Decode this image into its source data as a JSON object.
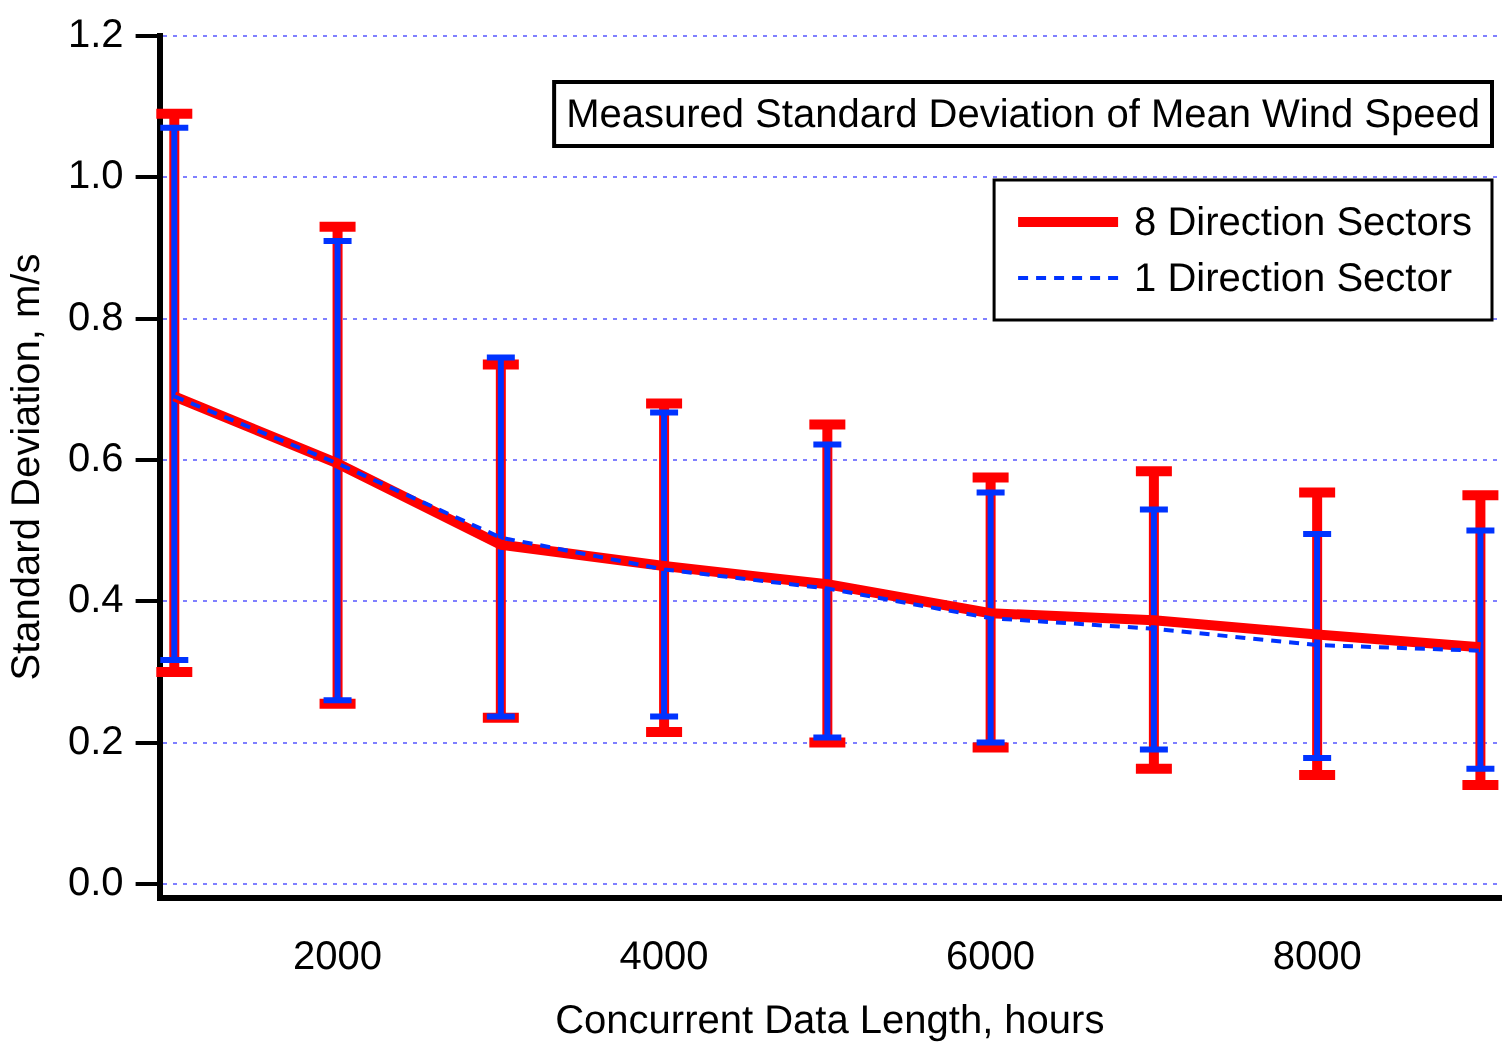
{
  "chart_data": {
    "type": "line",
    "title": "Measured Standard Deviation of Mean Wind Speed",
    "xlabel": "Concurrent Data Length, hours",
    "ylabel": "Standard Deviation, m/s",
    "x": [
      1000,
      2000,
      3000,
      4000,
      5000,
      6000,
      7000,
      8000,
      9000
    ],
    "series": [
      {
        "name": "8 Direction Sectors",
        "color": "#ff0000",
        "line_style": "solid",
        "values": [
          0.69,
          0.595,
          0.48,
          0.45,
          0.424,
          0.383,
          0.373,
          0.353,
          0.335
        ],
        "errors": [
          [
            0.3,
            1.09
          ],
          [
            0.255,
            0.93
          ],
          [
            0.235,
            0.735
          ],
          [
            0.215,
            0.68
          ],
          [
            0.2,
            0.65
          ],
          [
            0.193,
            0.575
          ],
          [
            0.163,
            0.584
          ],
          [
            0.154,
            0.554
          ],
          [
            0.14,
            0.55
          ]
        ]
      },
      {
        "name": "1 Direction Sector",
        "color": "#0033ff",
        "line_style": "dashed",
        "values": [
          0.69,
          0.595,
          0.49,
          0.445,
          0.418,
          0.376,
          0.361,
          0.338,
          0.33
        ],
        "errors": [
          [
            0.317,
            1.07
          ],
          [
            0.26,
            0.91
          ],
          [
            0.237,
            0.745
          ],
          [
            0.237,
            0.667
          ],
          [
            0.207,
            0.622
          ],
          [
            0.2,
            0.554
          ],
          [
            0.19,
            0.53
          ],
          [
            0.178,
            0.495
          ],
          [
            0.163,
            0.5
          ]
        ]
      }
    ],
    "xlim": [
      910,
      9120
    ],
    "xticks": [
      2000,
      4000,
      6000,
      8000
    ],
    "ylim": [
      -0.02,
      1.2
    ],
    "yticks": [
      {
        "value": 0,
        "label": "0.0"
      },
      {
        "value": 0.2,
        "label": "0.2"
      },
      {
        "value": 0.4,
        "label": "0.4"
      },
      {
        "value": 0.6,
        "label": "0.6"
      },
      {
        "value": 0.8,
        "label": "0.8"
      },
      {
        "value": 1,
        "label": "1.0"
      },
      {
        "value": 1.2,
        "label": "1.2"
      }
    ],
    "grid": "y",
    "legend": "top right",
    "marker": "none"
  }
}
